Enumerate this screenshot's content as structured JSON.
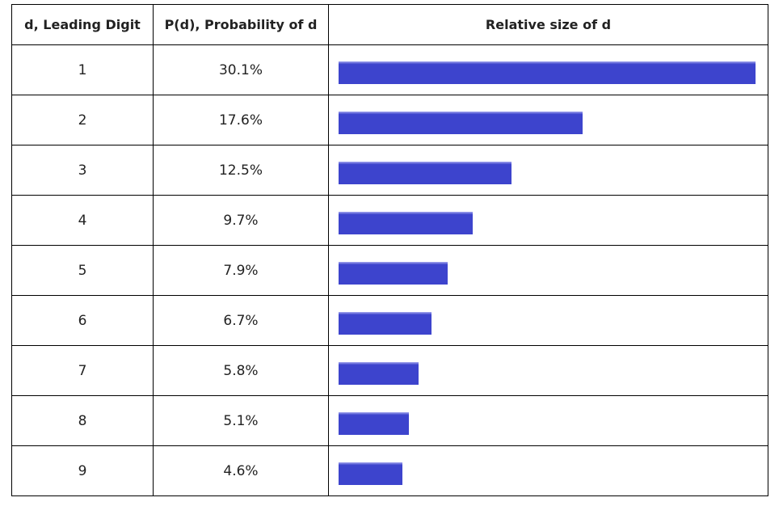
{
  "chart_data": {
    "type": "table",
    "title": "",
    "columns": [
      "d, Leading Digit",
      "P(d), Probability of d",
      "Relative size of d"
    ],
    "rows": [
      {
        "digit": "1",
        "probability": "30.1%",
        "value": 30.1
      },
      {
        "digit": "2",
        "probability": "17.6%",
        "value": 17.6
      },
      {
        "digit": "3",
        "probability": "12.5%",
        "value": 12.5
      },
      {
        "digit": "4",
        "probability": "9.7%",
        "value": 9.7
      },
      {
        "digit": "5",
        "probability": "7.9%",
        "value": 7.9
      },
      {
        "digit": "6",
        "probability": "6.7%",
        "value": 6.7
      },
      {
        "digit": "7",
        "probability": "5.8%",
        "value": 5.8
      },
      {
        "digit": "8",
        "probability": "5.1%",
        "value": 5.1
      },
      {
        "digit": "9",
        "probability": "4.6%",
        "value": 4.6
      }
    ],
    "bar_color": "#3d44cd"
  }
}
